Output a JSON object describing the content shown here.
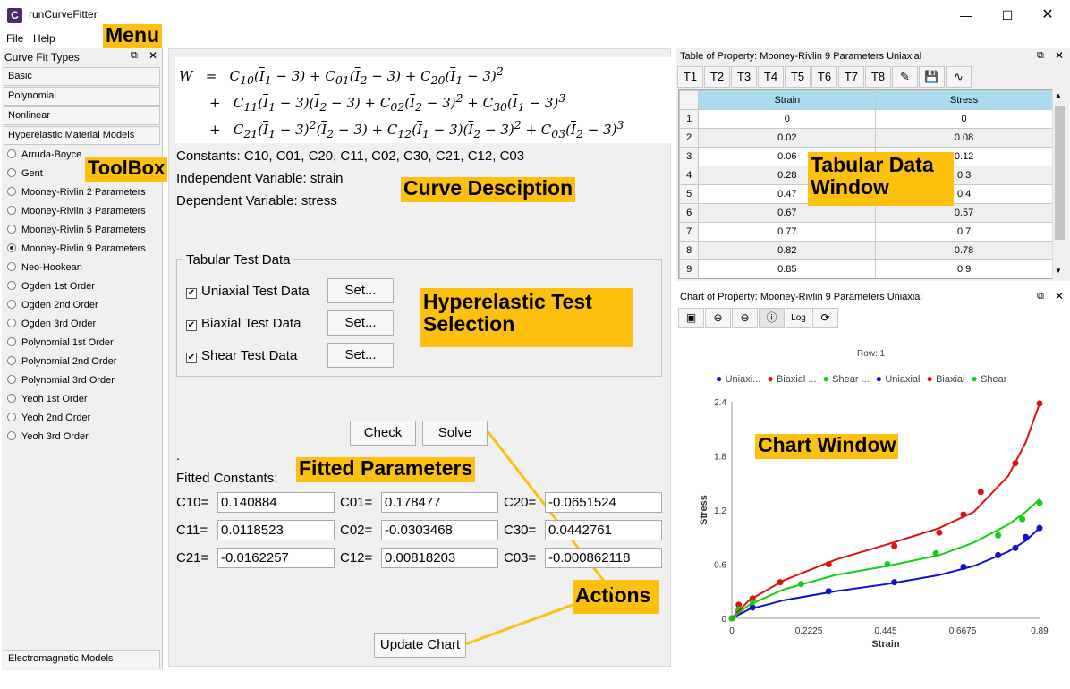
{
  "window": {
    "title": "runCurveFitter",
    "icon_letter": "C"
  },
  "menu": {
    "file": "File",
    "help": "Help"
  },
  "callouts": {
    "menu": "Menu",
    "toolbox": "ToolBox",
    "curve_description": "Curve Desciption",
    "tabular_data_window": "Tabular Data Window",
    "hyperelastic_test_selection": "Hyperelastic Test Selection",
    "fitted_parameters": "Fitted Parameters",
    "actions": "Actions",
    "chart_window": "Chart Window"
  },
  "toolbox": {
    "title": "Curve Fit Types",
    "groups": [
      "Basic",
      "Polynomial",
      "Nonlinear",
      "Hyperelastic Material Models"
    ],
    "models": [
      "Arruda-Boyce",
      "Gent",
      "Mooney-Rivlin 2 Parameters",
      "Mooney-Rivlin 3 Parameters",
      "Mooney-Rivlin 5 Parameters",
      "Mooney-Rivlin 9 Parameters",
      "Neo-Hookean",
      "Ogden 1st Order",
      "Ogden 2nd Order",
      "Ogden 3rd Order",
      "Polynomial 1st Order",
      "Polynomial 2nd Order",
      "Polynomial 3rd Order",
      "Yeoh 1st Order",
      "Yeoh 2nd Order",
      "Yeoh 3rd Order"
    ],
    "selected_model": "Mooney-Rivlin 9 Parameters",
    "bottom_group": "Electromagnetic Models"
  },
  "description": {
    "constants": "Constants: C10, C01, C20, C11, C02, C30, C21, C12, C03",
    "independent": "Independent Variable: strain",
    "dependent": "Dependent Variable: stress"
  },
  "tabular_test": {
    "title": "Tabular Test Data",
    "items": [
      {
        "label": "Uniaxial Test Data",
        "checked": true,
        "button": "Set..."
      },
      {
        "label": "Biaxial Test Data",
        "checked": true,
        "button": "Set..."
      },
      {
        "label": "Shear Test Data",
        "checked": true,
        "button": "Set..."
      }
    ]
  },
  "actions": {
    "check": "Check",
    "solve": "Solve",
    "update_chart": "Update Chart",
    "dot": "."
  },
  "fitted": {
    "label": "Fitted Constants:",
    "rows": [
      [
        {
          "name": "C10=",
          "value": "0.140884"
        },
        {
          "name": "C01=",
          "value": "0.178477"
        },
        {
          "name": "C20=",
          "value": "-0.0651524"
        }
      ],
      [
        {
          "name": "C11=",
          "value": "0.0118523"
        },
        {
          "name": "C02=",
          "value": "-0.0303468"
        },
        {
          "name": "C30=",
          "value": "0.0442761"
        }
      ],
      [
        {
          "name": "C21=",
          "value": "-0.0162257"
        },
        {
          "name": "C12=",
          "value": "0.00818203"
        },
        {
          "name": "C03=",
          "value": "-0.000862118"
        }
      ]
    ]
  },
  "table": {
    "title": "Table of Property: Mooney-Rivlin 9 Parameters Uniaxial",
    "tabs": [
      "T1",
      "T2",
      "T3",
      "T4",
      "T5",
      "T6",
      "T7",
      "T8"
    ],
    "columns": [
      "Strain",
      "Stress"
    ],
    "rows": [
      [
        "1",
        "0",
        "0"
      ],
      [
        "2",
        "0.02",
        "0.08"
      ],
      [
        "3",
        "0.06",
        "0.12"
      ],
      [
        "4",
        "0.28",
        "0.3"
      ],
      [
        "5",
        "0.47",
        "0.4"
      ],
      [
        "6",
        "0.67",
        "0.57"
      ],
      [
        "7",
        "0.77",
        "0.7"
      ],
      [
        "8",
        "0.82",
        "0.78"
      ],
      [
        "9",
        "0.85",
        "0.9"
      ]
    ]
  },
  "chart": {
    "title": "Chart of Property: Mooney-Rivlin 9 Parameters Uniaxial",
    "toolbar_log": "Log",
    "row_label": "Row: 1"
  },
  "chart_data": {
    "type": "scatter",
    "xlabel": "Strain",
    "ylabel": "Stress",
    "xlim": [
      0,
      0.89
    ],
    "ylim": [
      0,
      2.4
    ],
    "xticks": [
      "0",
      "0.2225",
      "0.445",
      "0.6675",
      "0.89"
    ],
    "yticks": [
      "0",
      "0.6",
      "1.2",
      "1.8",
      "2.4"
    ],
    "legend_position": "top",
    "colors": {
      "uniaxial": "#1010d0",
      "biaxial": "#e01010",
      "shear": "#10d010"
    },
    "series": [
      {
        "name": "Uniaxi...",
        "kind": "points",
        "color": "#1010d0",
        "x": [
          0,
          0.02,
          0.06,
          0.28,
          0.47,
          0.67,
          0.77,
          0.82,
          0.85,
          0.89
        ],
        "y": [
          0,
          0.08,
          0.12,
          0.3,
          0.4,
          0.57,
          0.7,
          0.78,
          0.9,
          1.0
        ]
      },
      {
        "name": "Biaxial ...",
        "kind": "points",
        "color": "#e01010",
        "x": [
          0,
          0.02,
          0.06,
          0.14,
          0.28,
          0.47,
          0.6,
          0.67,
          0.72,
          0.82,
          0.89
        ],
        "y": [
          0,
          0.15,
          0.22,
          0.4,
          0.6,
          0.8,
          0.95,
          1.15,
          1.4,
          1.72,
          2.38
        ]
      },
      {
        "name": "Shear ...",
        "kind": "points",
        "color": "#10d010",
        "x": [
          0,
          0.02,
          0.06,
          0.2,
          0.45,
          0.59,
          0.77,
          0.84,
          0.89
        ],
        "y": [
          0,
          0.1,
          0.18,
          0.38,
          0.6,
          0.72,
          0.92,
          1.1,
          1.28
        ]
      },
      {
        "name": "Uniaxial",
        "kind": "line",
        "color": "#1010d0",
        "x": [
          0,
          0.05,
          0.15,
          0.3,
          0.45,
          0.6,
          0.7,
          0.8,
          0.85,
          0.89
        ],
        "y": [
          0,
          0.1,
          0.2,
          0.3,
          0.38,
          0.48,
          0.58,
          0.74,
          0.86,
          1.0
        ]
      },
      {
        "name": "Biaxial",
        "kind": "line",
        "color": "#e01010",
        "x": [
          0,
          0.05,
          0.15,
          0.3,
          0.45,
          0.6,
          0.7,
          0.8,
          0.85,
          0.89
        ],
        "y": [
          0,
          0.2,
          0.42,
          0.65,
          0.82,
          1.0,
          1.18,
          1.58,
          1.95,
          2.38
        ]
      },
      {
        "name": "Shear",
        "kind": "line",
        "color": "#10d010",
        "x": [
          0,
          0.05,
          0.15,
          0.3,
          0.45,
          0.6,
          0.7,
          0.8,
          0.85,
          0.89
        ],
        "y": [
          0,
          0.15,
          0.32,
          0.48,
          0.58,
          0.7,
          0.84,
          1.04,
          1.18,
          1.32
        ]
      }
    ]
  }
}
